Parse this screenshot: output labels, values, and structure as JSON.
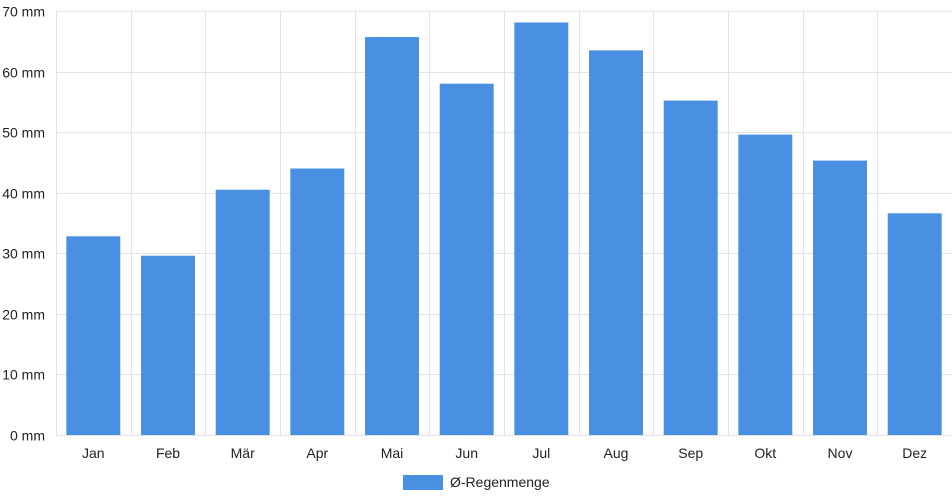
{
  "chart_data": {
    "type": "bar",
    "categories": [
      "Jan",
      "Feb",
      "Mär",
      "Apr",
      "Mai",
      "Jun",
      "Jul",
      "Aug",
      "Sep",
      "Okt",
      "Nov",
      "Dez"
    ],
    "series": [
      {
        "name": "Ø-Regenmenge",
        "values": [
          32.8,
          29.6,
          40.5,
          44.0,
          65.7,
          58.0,
          68.1,
          63.5,
          55.2,
          49.6,
          45.3,
          36.6
        ],
        "color": "#4a90e2"
      }
    ],
    "title": "",
    "xlabel": "",
    "ylabel": "",
    "ylim": [
      0,
      70
    ],
    "yticks": [
      0,
      10,
      20,
      30,
      40,
      50,
      60,
      70
    ],
    "ytick_labels": [
      "0 mm",
      "10 mm",
      "20 mm",
      "30 mm",
      "40 mm",
      "50 mm",
      "60 mm",
      "70 mm"
    ],
    "grid": true,
    "legend_position": "bottom"
  }
}
